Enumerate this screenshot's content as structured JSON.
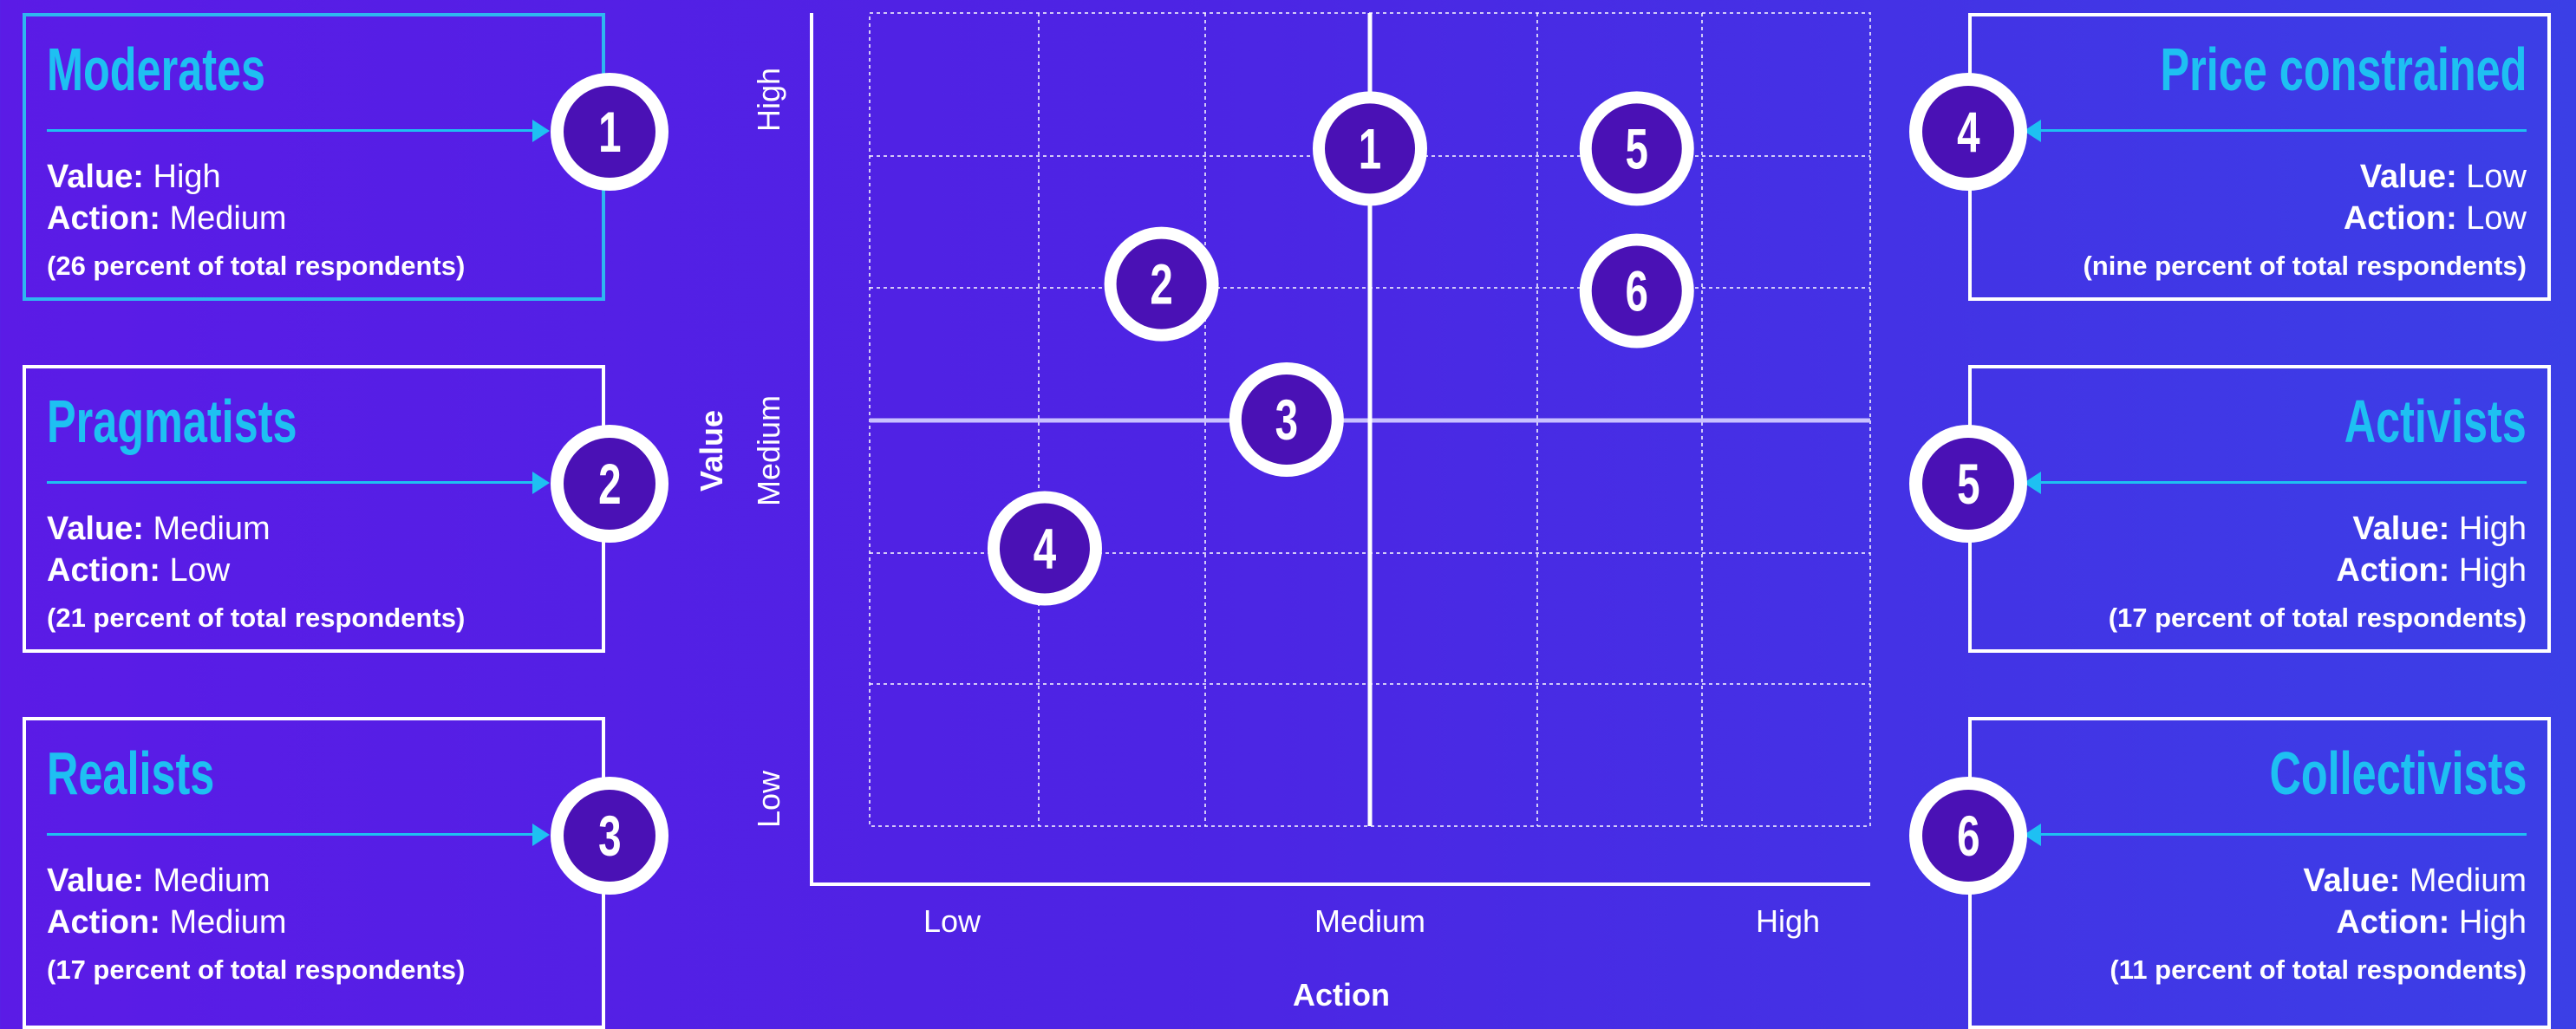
{
  "segments": [
    {
      "num": "1",
      "title": "Moderates",
      "value_label": "Value",
      "value": "High",
      "action_label": "Action",
      "action": "Medium",
      "share": "(26 percent of total respondents)"
    },
    {
      "num": "2",
      "title": "Pragmatists",
      "value_label": "Value",
      "value": "Medium",
      "action_label": "Action",
      "action": "Low",
      "share": "(21 percent of total respondents)"
    },
    {
      "num": "3",
      "title": "Realists",
      "value_label": "Value",
      "value": "Medium",
      "action_label": "Action",
      "action": "Medium",
      "share": "(17 percent of total respondents)"
    },
    {
      "num": "4",
      "title": "Price constrained",
      "value_label": "Value",
      "value": "Low",
      "action_label": "Action",
      "action": "Low",
      "share": "(nine percent of total respondents)"
    },
    {
      "num": "5",
      "title": "Activists",
      "value_label": "Value",
      "value": "High",
      "action_label": "Action",
      "action": "High",
      "share": "(17 percent of total respondents)"
    },
    {
      "num": "6",
      "title": "Collectivists",
      "value_label": "Value",
      "value": "Medium",
      "action_label": "Action",
      "action": "High",
      "share": "(11 percent of total respondents)"
    }
  ],
  "chart": {
    "xlabel": "Action",
    "ylabel": "Value",
    "x_ticks": [
      "Low",
      "Medium",
      "High"
    ],
    "y_ticks": [
      "Low",
      "Medium",
      "High"
    ],
    "points": [
      {
        "label": "1",
        "x": 3.0,
        "y": 5.0
      },
      {
        "label": "2",
        "x": 1.75,
        "y": 4.0
      },
      {
        "label": "3",
        "x": 2.5,
        "y": 3.0
      },
      {
        "label": "4",
        "x": 1.05,
        "y": 2.05
      },
      {
        "label": "5",
        "x": 4.6,
        "y": 5.0
      },
      {
        "label": "6",
        "x": 4.6,
        "y": 3.95
      }
    ]
  },
  "colors": {
    "accent": "#1EC0F2",
    "badge_fill": "#4A11B5",
    "highlight_border": "#2EB7F0"
  }
}
